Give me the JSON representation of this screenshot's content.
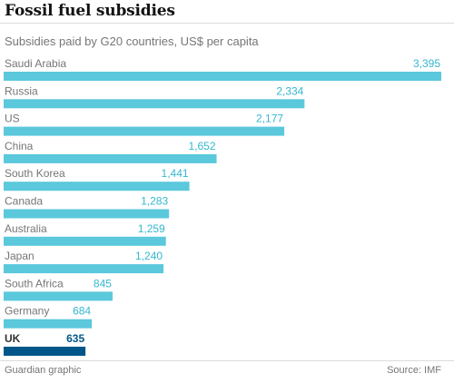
{
  "header": {
    "title": "Fossil fuel subsidies",
    "subtitle": "Subsidies paid by G20 countries, US$ per capita"
  },
  "footer": {
    "credit": "Guardian graphic",
    "source": "Source: IMF"
  },
  "colors": {
    "bar": "#5bc8dc",
    "value": "#34b7cf",
    "highlight_bar": "#005689",
    "label": "#767676",
    "highlight_label": "#333333"
  },
  "chart_data": {
    "type": "bar",
    "orientation": "horizontal",
    "categories": [
      "Saudi Arabia",
      "Russia",
      "US",
      "China",
      "South Korea",
      "Canada",
      "Australia",
      "Japan",
      "South Africa",
      "Germany",
      "UK"
    ],
    "values": [
      3395,
      2334,
      2177,
      1652,
      1441,
      1283,
      1259,
      1240,
      845,
      684,
      635
    ],
    "value_labels": [
      "3,395",
      "2,334",
      "2,177",
      "1,652",
      "1,441",
      "1,283",
      "1,259",
      "1,240",
      "845",
      "684",
      "635"
    ],
    "highlight": "UK",
    "title": "Fossil fuel subsidies",
    "subtitle": "Subsidies paid by G20 countries, US$ per capita",
    "xlabel": "",
    "ylabel": "",
    "xlim": [
      0,
      3395
    ],
    "grid": false,
    "legend": "none"
  }
}
